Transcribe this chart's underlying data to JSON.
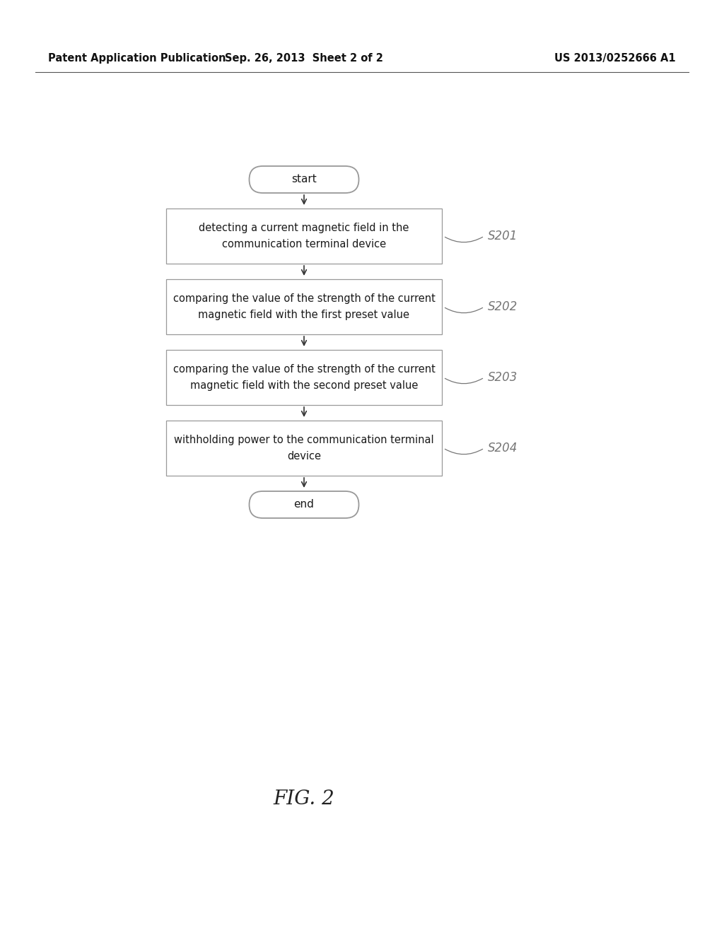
{
  "background_color": "#ffffff",
  "header_left": "Patent Application Publication",
  "header_center": "Sep. 26, 2013  Sheet 2 of 2",
  "header_right": "US 2013/0252666 A1",
  "header_fontsize": 10.5,
  "figure_label": "FIG. 2",
  "figure_label_fontsize": 20,
  "boxes": [
    {
      "label": "S201",
      "text": "detecting a current magnetic field in the\ncommunication terminal device"
    },
    {
      "label": "S202",
      "text": "comparing the value of the strength of the current\nmagnetic field with the first preset value"
    },
    {
      "label": "S203",
      "text": "comparing the value of the strength of the current\nmagnetic field with the second preset value"
    },
    {
      "label": "S204",
      "text": "withholding power to the communication terminal\ndevice"
    }
  ],
  "box_color": "#ffffff",
  "box_edge_color": "#999999",
  "text_color": "#1a1a1a",
  "label_color": "#777777",
  "arrow_color": "#333333",
  "text_fontsize": 10.5,
  "label_fontsize": 12,
  "header_line_color": "#555555",
  "start_text": "start",
  "end_text": "end",
  "capsule_fontsize": 11
}
